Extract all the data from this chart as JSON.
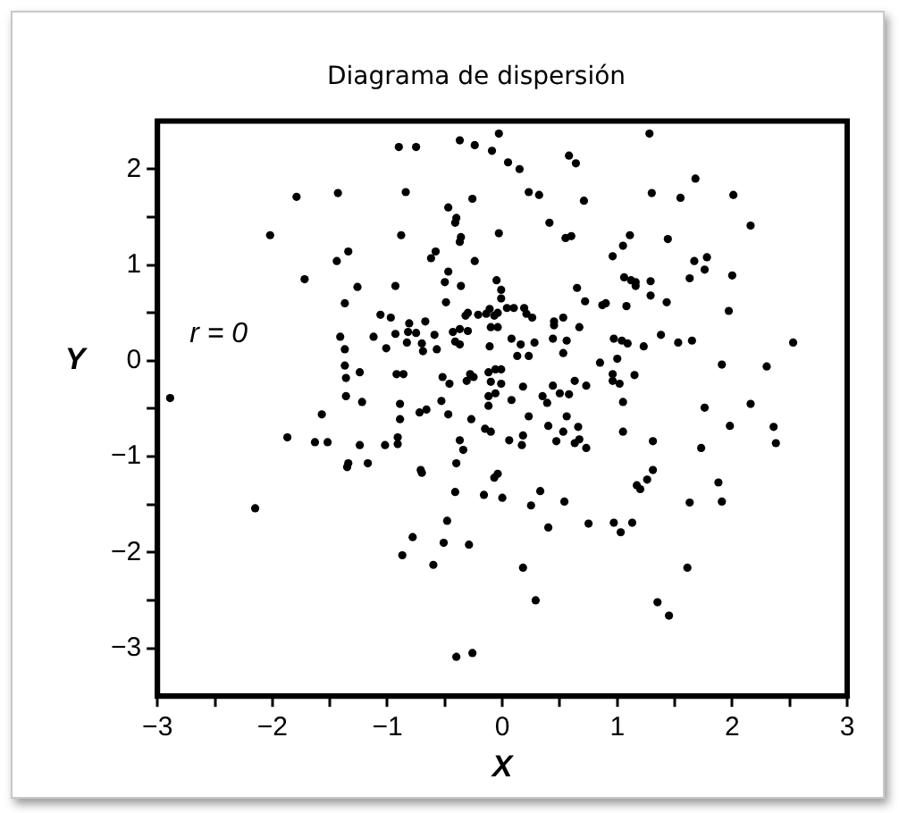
{
  "chart_data": {
    "type": "scatter",
    "title": "Diagrama de dispersión",
    "xlabel": "X",
    "ylabel": "Y",
    "annotations": [
      "r = 0"
    ],
    "xlim": [
      -3,
      3
    ],
    "xticks": [
      {
        "value": -3,
        "label": "−3"
      },
      {
        "value": -2.5,
        "label": null
      },
      {
        "value": -2,
        "label": "−2"
      },
      {
        "value": -1.5,
        "label": null
      },
      {
        "value": -1,
        "label": "−1"
      },
      {
        "value": -0.5,
        "label": null
      },
      0,
      {
        "value": 0.5,
        "label": null
      },
      1,
      {
        "value": 1.5,
        "label": null
      },
      2,
      {
        "value": 2.5,
        "label": null
      },
      3
    ],
    "ylim": [
      -3.5,
      2.5
    ],
    "yticks": [
      {
        "value": -3,
        "label": "−3"
      },
      {
        "value": -2.5,
        "label": null
      },
      {
        "value": -2,
        "label": "−2"
      },
      {
        "value": -1.5,
        "label": null
      },
      {
        "value": -1,
        "label": "−1"
      },
      {
        "value": -0.5,
        "label": null
      },
      0,
      {
        "value": 0.5,
        "label": null
      },
      1,
      {
        "value": 1.5,
        "label": null
      },
      2
    ],
    "marker": "circle",
    "series": [
      {
        "color": "#000000",
        "x": [
          -0.9,
          -0.75,
          -0.37,
          -0.24,
          -0.09,
          -0.03,
          -1.79,
          -1.43,
          -0.84,
          -0.26,
          -0.47,
          -0.4,
          -0.41,
          -2.02,
          -0.88,
          -0.36,
          -0.37,
          -0.03,
          -1.34,
          -1.44,
          -0.58,
          -0.62,
          -0.24,
          -1.72,
          -1.26,
          -0.93,
          -0.47,
          -0.5,
          -0.36,
          -1.37,
          -0.49,
          -1.06,
          -0.97,
          -0.3,
          -0.32,
          -0.21,
          -0.14,
          -0.11,
          -0.07,
          -0.81,
          -0.67,
          -1.41,
          -1.12,
          -0.93,
          -0.82,
          -0.75,
          -0.59,
          -0.43,
          -0.37,
          -0.3,
          -0.1,
          -1.37,
          -1.01,
          -0.83,
          -0.7,
          -0.69,
          -0.57,
          -0.41,
          -0.37,
          -0.11,
          -1.37,
          -1.24,
          -1.36,
          -0.92,
          -0.86,
          -0.52,
          -0.46,
          -0.31,
          -0.28,
          -0.25,
          -0.12,
          -0.06,
          -2.89,
          -1.36,
          -1.22,
          -0.89,
          -0.12,
          -0.12,
          -0.53,
          -0.89,
          -0.72,
          -0.66,
          -0.47,
          -0.27,
          -0.15,
          -0.1,
          -1.87,
          -1.63,
          -1.52,
          -1.57,
          -1.24,
          -1.02,
          -0.91,
          -0.91,
          -1.35,
          -1.34,
          -1.17,
          -0.71,
          -0.7,
          -0.37,
          -0.34,
          -0.4,
          -0.41,
          -0.16,
          -0.07,
          -0.04,
          -2.15,
          -0.48,
          -0.78,
          -0.51,
          -0.29,
          -0.87,
          -0.6,
          -0.4,
          -0.26,
          0.05,
          0.15,
          0.58,
          0.64,
          1.28,
          0.23,
          0.32,
          0.71,
          1.3,
          1.55,
          1.68,
          2.01,
          2.16,
          0.41,
          0.55,
          0.6,
          1.05,
          1.11,
          0.96,
          1.44,
          1.67,
          1.78,
          1.76,
          1.63,
          2.0,
          1.06,
          1.12,
          1.16,
          1.16,
          1.29,
          1.29,
          1.43,
          -0.05,
          -0.01,
          -0.01,
          0.65,
          0.72,
          0.87,
          0.9,
          1.08,
          1.97,
          -0.04,
          0.04,
          0.1,
          0.19,
          0.21,
          0.26,
          -0.04,
          0.45,
          0.45,
          0.53,
          0.67,
          0.08,
          0.16,
          0.23,
          0.13,
          0.28,
          0.44,
          0.56,
          0.53,
          0.97,
          1.04,
          1.09,
          1.23,
          1.38,
          1.53,
          1.65,
          2.53,
          1.91,
          2.3,
          0.85,
          1.0,
          0.96,
          0.96,
          1.02,
          1.15,
          1.05,
          -0.01,
          -0.1,
          -0.01,
          -0.06,
          0.08,
          0.18,
          0.35,
          0.39,
          0.44,
          0.5,
          0.58,
          0.63,
          0.73,
          0.23,
          0.4,
          0.53,
          0.56,
          0.66,
          0.63,
          0.67,
          0.73,
          0.47,
          0.06,
          0.17,
          0.18,
          1.05,
          1.31,
          1.76,
          2.16,
          1.98,
          2.36,
          2.38,
          1.73,
          0.0,
          0.33,
          0.25,
          0.54,
          0.4,
          0.75,
          0.97,
          1.03,
          1.13,
          1.17,
          1.2,
          1.26,
          1.31,
          1.63,
          1.88,
          1.91,
          0.18,
          0.29,
          1.61,
          1.35,
          1.45
        ],
        "values": [
          2.23,
          2.23,
          2.3,
          2.25,
          2.19,
          2.37,
          1.71,
          1.75,
          1.76,
          1.69,
          1.6,
          1.49,
          1.44,
          1.31,
          1.31,
          1.29,
          1.24,
          1.33,
          1.14,
          1.04,
          1.14,
          1.07,
          1.04,
          0.85,
          0.77,
          0.78,
          0.93,
          0.82,
          0.78,
          0.6,
          0.61,
          0.48,
          0.45,
          0.5,
          0.47,
          0.48,
          0.49,
          0.54,
          0.47,
          0.39,
          0.41,
          0.25,
          0.25,
          0.28,
          0.3,
          0.29,
          0.27,
          0.3,
          0.33,
          0.31,
          0.35,
          0.12,
          0.13,
          0.19,
          0.18,
          0.1,
          0.12,
          0.2,
          0.17,
          0.15,
          -0.05,
          -0.12,
          -0.18,
          -0.14,
          -0.14,
          -0.17,
          -0.24,
          -0.21,
          -0.14,
          -0.17,
          -0.12,
          -0.09,
          -0.39,
          -0.37,
          -0.43,
          -0.45,
          -0.37,
          -0.47,
          -0.42,
          -0.61,
          -0.54,
          -0.51,
          -0.56,
          -0.61,
          -0.71,
          -0.74,
          -0.8,
          -0.85,
          -0.85,
          -0.56,
          -0.88,
          -0.88,
          -0.8,
          -0.87,
          -1.11,
          -1.07,
          -1.07,
          -1.14,
          -1.17,
          -0.83,
          -0.93,
          -1.07,
          -1.37,
          -1.4,
          -1.22,
          -1.18,
          -1.54,
          -1.67,
          -1.84,
          -1.9,
          -1.92,
          -2.03,
          -2.13,
          -3.09,
          -3.05,
          2.07,
          2.0,
          2.14,
          2.06,
          2.37,
          1.76,
          1.73,
          1.67,
          1.75,
          1.7,
          1.9,
          1.73,
          1.41,
          1.44,
          1.28,
          1.3,
          1.2,
          1.31,
          1.09,
          1.27,
          1.04,
          1.08,
          0.95,
          0.86,
          0.89,
          0.87,
          0.84,
          0.82,
          0.78,
          0.83,
          0.68,
          0.61,
          0.84,
          0.74,
          0.65,
          0.76,
          0.62,
          0.58,
          0.6,
          0.57,
          0.52,
          0.5,
          0.55,
          0.55,
          0.55,
          0.49,
          0.45,
          0.35,
          0.41,
          0.37,
          0.45,
          0.35,
          0.23,
          0.17,
          0.05,
          0.05,
          0.19,
          0.23,
          0.21,
          0.08,
          0.23,
          0.21,
          0.18,
          0.15,
          0.27,
          0.19,
          0.21,
          0.19,
          -0.04,
          -0.06,
          -0.02,
          0.02,
          -0.14,
          -0.21,
          -0.24,
          -0.15,
          -0.43,
          -0.09,
          -0.22,
          -0.24,
          -0.34,
          -0.41,
          -0.27,
          -0.37,
          -0.44,
          -0.26,
          -0.34,
          -0.35,
          -0.21,
          -0.26,
          -0.58,
          -0.68,
          -0.74,
          -0.58,
          -0.69,
          -0.86,
          -0.82,
          -0.91,
          -0.84,
          -0.83,
          -0.88,
          -0.78,
          -0.74,
          -0.84,
          -0.49,
          -0.45,
          -0.68,
          -0.69,
          -0.86,
          -0.91,
          -1.43,
          -1.36,
          -1.51,
          -1.47,
          -1.74,
          -1.7,
          -1.69,
          -1.79,
          -1.69,
          -1.3,
          -1.34,
          -1.24,
          -1.14,
          -1.48,
          -1.27,
          -1.47,
          -2.16,
          -2.5,
          -2.16,
          -2.52,
          -2.66
        ]
      }
    ]
  }
}
